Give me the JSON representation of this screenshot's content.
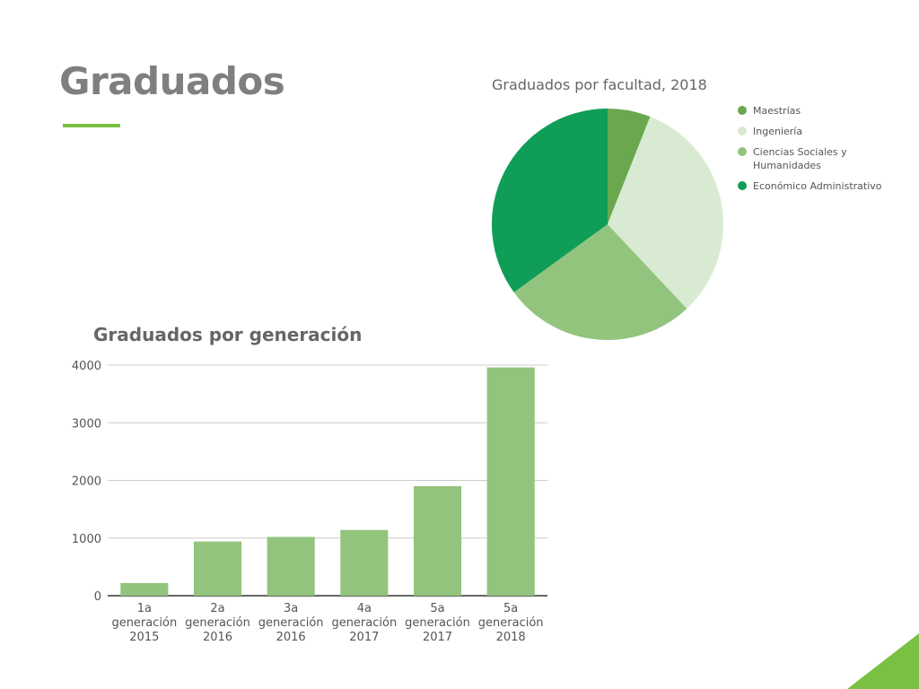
{
  "slide": {
    "title": "Graduados",
    "accent_color": "#7ac143",
    "corner_color": "#7ac143"
  },
  "chart_data": [
    {
      "type": "pie",
      "title": "Graduados por facultad, 2018",
      "legend_position": "right",
      "slices": [
        {
          "name": "Maestrías",
          "value": 6,
          "color": "#6aa84f"
        },
        {
          "name": "Ingeniería",
          "value": 32,
          "color": "#d9ead3"
        },
        {
          "name": "Ciencias Sociales y",
          "name2": "Humanidades",
          "value": 27,
          "color": "#93c47d"
        },
        {
          "name": "Económico Administrativo",
          "value": 35,
          "color": "#0f9d58"
        }
      ]
    },
    {
      "type": "bar",
      "title": "Graduados por generación",
      "xlabel": "",
      "ylabel": "",
      "ylim": [
        0,
        4000
      ],
      "yticks": [
        "0",
        "1000",
        "2000",
        "3000",
        "4000"
      ],
      "grid": true,
      "bar_color": "#93c47d",
      "categories": [
        [
          "1a",
          "generación",
          "2015"
        ],
        [
          "2a",
          "generación",
          "2016"
        ],
        [
          "3a",
          "generación",
          "2016"
        ],
        [
          "4a",
          "generación",
          "2017"
        ],
        [
          "5a",
          "generación",
          "2017"
        ],
        [
          "5a",
          "generación",
          "2018"
        ]
      ],
      "values": [
        220,
        940,
        1020,
        1140,
        1900,
        3960
      ]
    }
  ]
}
